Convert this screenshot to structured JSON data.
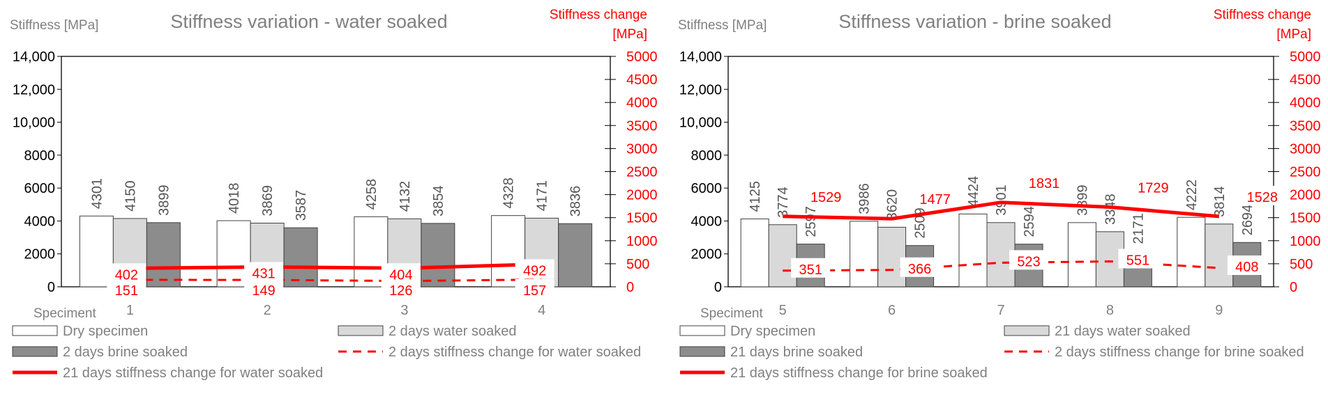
{
  "colors": {
    "dry": "#ffffff",
    "water": "#d9d9d9",
    "brine": "#8c8c8c",
    "line": "#ff0000",
    "axis_text": "#000000",
    "title_text": "#808080",
    "secondary_text": "#ff0000"
  },
  "chart_data": [
    {
      "type": "bar",
      "title": "Stiffness variation - water soaked",
      "ylabel": "Stiffness [MPa]",
      "y2label_line1": "Stiffness change",
      "y2label_line2": "[MPa]",
      "xlabel": "Speciment",
      "categories": [
        "1",
        "2",
        "3",
        "4"
      ],
      "ylim": [
        0,
        14000
      ],
      "yticks": [
        0,
        2000,
        4000,
        6000,
        8000,
        10000,
        12000,
        14000
      ],
      "ytick_labels": [
        "0",
        "2000",
        "4000",
        "6000",
        "8000",
        "10,000",
        "12,000",
        "14,000"
      ],
      "y2lim": [
        0,
        5000
      ],
      "y2ticks": [
        0,
        500,
        1000,
        1500,
        2000,
        2500,
        3000,
        3500,
        4000,
        4500,
        5000
      ],
      "y2tick_labels": [
        "0",
        "500",
        "1000",
        "1500",
        "2000",
        "2500",
        "3000",
        "3500",
        "4000",
        "4500",
        "5000"
      ],
      "series": [
        {
          "name": "Dry specimen",
          "values": [
            4301,
            4018,
            4258,
            4328
          ],
          "labels": [
            "4301",
            "4018",
            "4258",
            "4328"
          ]
        },
        {
          "name": "2 days water soaked",
          "values": [
            4150,
            3869,
            4132,
            4171
          ],
          "labels": [
            "4150",
            "3869",
            "4132",
            "4171"
          ]
        },
        {
          "name": "2 days brine soaked",
          "values": [
            3899,
            3587,
            3854,
            3836
          ],
          "labels": [
            "3899",
            "3587",
            "3854",
            "3836"
          ]
        }
      ],
      "lines": [
        {
          "name": "2 days stiffness change for water soaked",
          "style": "dashed",
          "values": [
            151,
            149,
            126,
            157
          ],
          "labels": [
            "151",
            "149",
            "126",
            "157"
          ]
        },
        {
          "name": "21 days stiffness change for water soaked",
          "style": "solid",
          "values": [
            402,
            431,
            404,
            492
          ],
          "labels": [
            "402",
            "431",
            "404",
            "492"
          ]
        }
      ],
      "legend": {
        "placement": "bottom",
        "entries": [
          "Dry specimen",
          "2 days water soaked",
          "2 days brine soaked",
          "2 days stiffness change for water soaked",
          "21 days stiffness change for water soaked"
        ]
      }
    },
    {
      "type": "bar",
      "title": "Stiffness variation - brine soaked",
      "ylabel": "Stiffness [MPa]",
      "y2label_line1": "Stiffness change",
      "y2label_line2": "[MPa]",
      "xlabel": "Speciment",
      "categories": [
        "5",
        "6",
        "7",
        "8",
        "9"
      ],
      "ylim": [
        0,
        14000
      ],
      "yticks": [
        0,
        2000,
        4000,
        6000,
        8000,
        10000,
        12000,
        14000
      ],
      "ytick_labels": [
        "0",
        "2000",
        "4000",
        "6000",
        "8000",
        "10,000",
        "12,000",
        "14,000"
      ],
      "y2lim": [
        0,
        5000
      ],
      "y2ticks": [
        0,
        500,
        1000,
        1500,
        2000,
        2500,
        3000,
        3500,
        4000,
        4500,
        5000
      ],
      "y2tick_labels": [
        "0",
        "500",
        "1000",
        "1500",
        "2000",
        "2500",
        "3000",
        "3500",
        "4000",
        "4500",
        "5000"
      ],
      "series": [
        {
          "name": "Dry specimen",
          "values": [
            4125,
            3986,
            4424,
            3899,
            4222
          ],
          "labels": [
            "4125",
            "3986",
            "4424",
            "3899",
            "4222"
          ]
        },
        {
          "name": "21 days water soaked",
          "values": [
            3774,
            3620,
            3901,
            3348,
            3814
          ],
          "labels": [
            "3774",
            "3620",
            "3901",
            "3348",
            "3814"
          ]
        },
        {
          "name": "21 days brine soaked",
          "values": [
            2597,
            2509,
            2594,
            2171,
            2694
          ],
          "labels": [
            "2597",
            "2509",
            "2594",
            "2171",
            "2694"
          ]
        }
      ],
      "lines": [
        {
          "name": "2 days stiffness change for brine soaked",
          "style": "dashed",
          "values": [
            351,
            366,
            523,
            551,
            408
          ],
          "labels": [
            "351",
            "366",
            "523",
            "551",
            "408"
          ]
        },
        {
          "name": "21 days stiffness change for brine soaked",
          "style": "solid",
          "values": [
            1529,
            1477,
            1831,
            1729,
            1528
          ],
          "labels": [
            "1529",
            "1477",
            "1831",
            "1729",
            "1528"
          ]
        }
      ],
      "legend": {
        "placement": "bottom",
        "entries": [
          "Dry specimen",
          "21 days water soaked",
          "21 days brine soaked",
          "2 days stiffness change for brine soaked",
          "21 days stiffness change for brine soaked"
        ]
      }
    }
  ]
}
